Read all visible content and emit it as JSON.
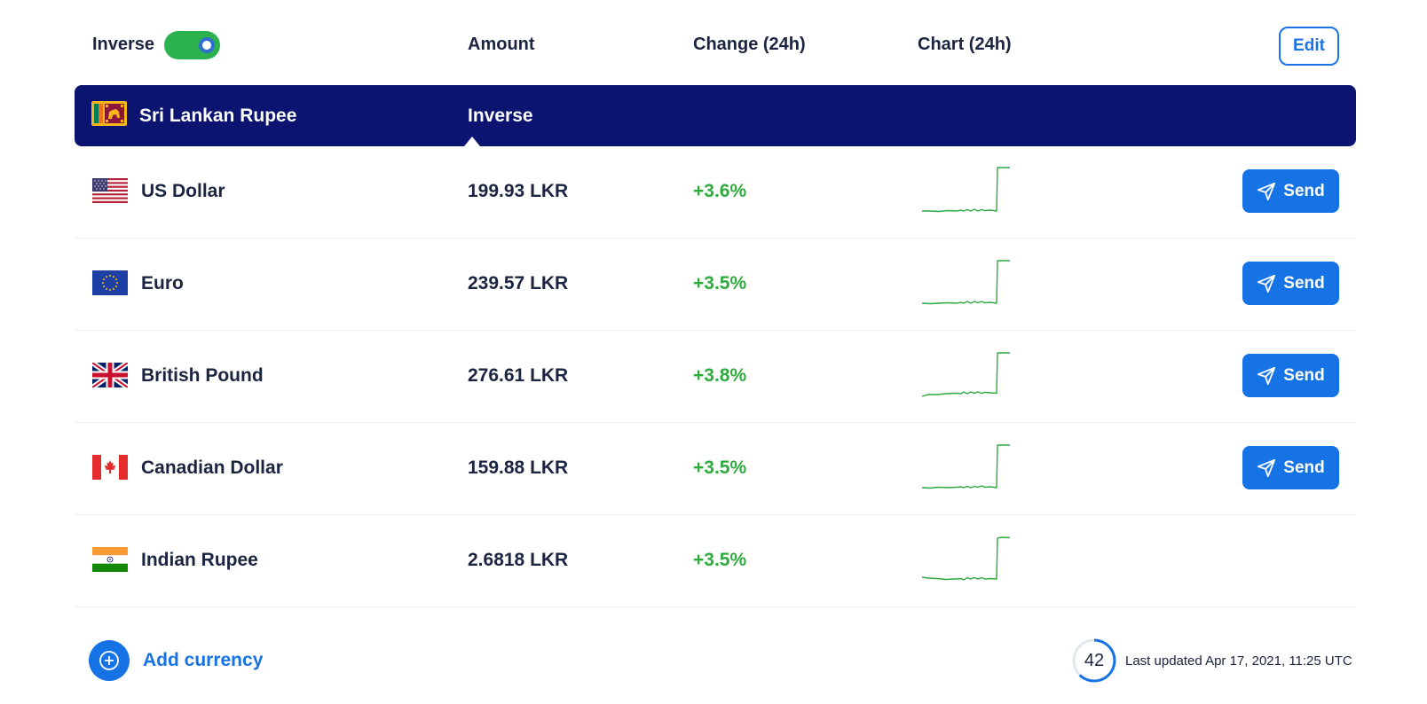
{
  "header": {
    "inverse_label": "Inverse",
    "inverse_on": true,
    "amount_label": "Amount",
    "change_label": "Change (24h)",
    "chart_label": "Chart (24h)",
    "edit_label": "Edit"
  },
  "base": {
    "name": "Sri Lankan Rupee",
    "mode_label": "Inverse",
    "flag": "flag-sri-lanka-icon"
  },
  "rows": [
    {
      "name": "US Dollar",
      "amount": "199.93 LKR",
      "change": "+3.6%",
      "send_label": "Send",
      "has_send": true,
      "flag": "flag-us-icon"
    },
    {
      "name": "Euro",
      "amount": "239.57 LKR",
      "change": "+3.5%",
      "send_label": "Send",
      "has_send": true,
      "flag": "flag-eu-icon"
    },
    {
      "name": "British Pound",
      "amount": "276.61 LKR",
      "change": "+3.8%",
      "send_label": "Send",
      "has_send": true,
      "flag": "flag-uk-icon"
    },
    {
      "name": "Canadian Dollar",
      "amount": "159.88 LKR",
      "change": "+3.5%",
      "send_label": "Send",
      "has_send": true,
      "flag": "flag-canada-icon"
    },
    {
      "name": "Indian Rupee",
      "amount": "2.6818 LKR",
      "change": "+3.5%",
      "send_label": "",
      "has_send": false,
      "flag": "flag-india-icon"
    }
  ],
  "footer": {
    "add_label": "Add currency",
    "timer_value": "42",
    "last_updated": "Last updated Apr 17, 2021, 11:25 UTC"
  },
  "colors": {
    "accent": "#1673e6",
    "base_bar": "#0b1470",
    "positive": "#2eaa3f",
    "toggle_on": "#2bb24c"
  }
}
